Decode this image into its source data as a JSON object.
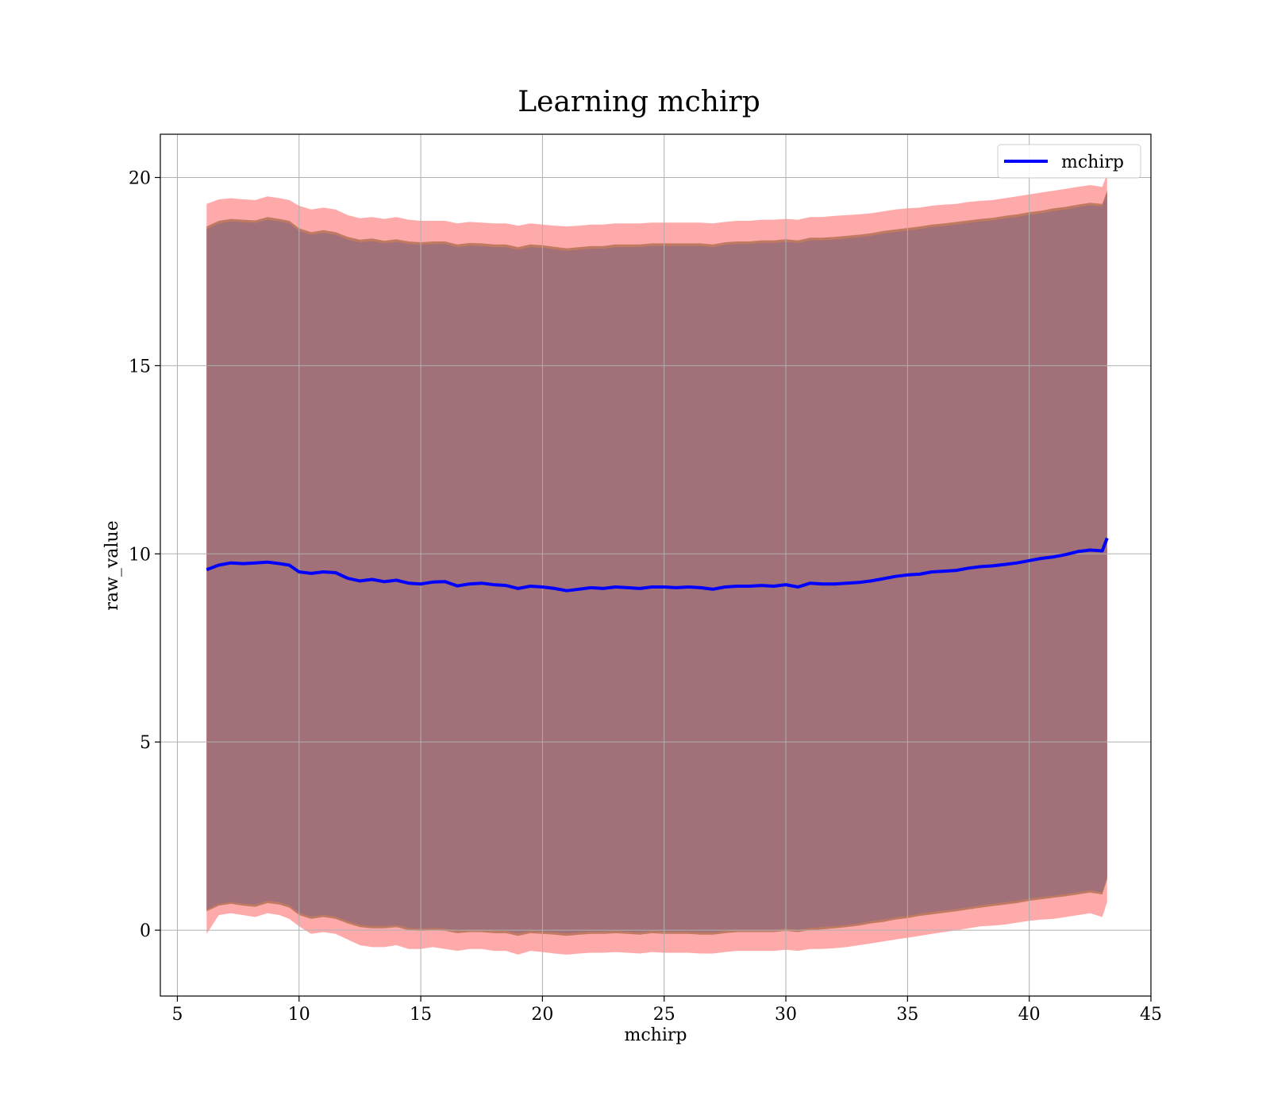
{
  "chart_data": {
    "type": "line",
    "title": "Learning mchirp",
    "xlabel": "mchirp",
    "ylabel": "raw_value",
    "xlim": [
      4.3,
      45
    ],
    "ylim": [
      -1.75,
      21.15
    ],
    "xticks": [
      5,
      10,
      15,
      20,
      25,
      30,
      35,
      40,
      45
    ],
    "yticks": [
      0,
      5,
      10,
      15,
      20
    ],
    "xtick_labels": [
      "5",
      "10",
      "15",
      "20",
      "25",
      "30",
      "35",
      "40",
      "45"
    ],
    "ytick_labels": [
      "0",
      "5",
      "10",
      "15",
      "20"
    ],
    "grid": true,
    "legend": {
      "position": "top-right",
      "entries": [
        {
          "label": "mchirp",
          "color": "#0000ff"
        }
      ]
    },
    "x": [
      6.2,
      6.7,
      7.2,
      7.7,
      8.2,
      8.7,
      9.2,
      9.6,
      10.0,
      10.5,
      11.0,
      11.5,
      12.0,
      12.5,
      13.0,
      13.5,
      14.0,
      14.5,
      15.0,
      15.5,
      16.0,
      16.5,
      17.0,
      17.5,
      18.0,
      18.5,
      19.0,
      19.5,
      20.0,
      20.5,
      21.0,
      21.5,
      22.0,
      22.5,
      23.0,
      23.5,
      24.0,
      24.5,
      25.0,
      25.5,
      26.0,
      26.5,
      27.0,
      27.5,
      28.0,
      28.5,
      29.0,
      29.5,
      30.0,
      30.5,
      31.0,
      31.5,
      32.0,
      32.5,
      33.0,
      33.5,
      34.0,
      34.5,
      35.0,
      35.5,
      36.0,
      36.5,
      37.0,
      37.5,
      38.0,
      38.5,
      39.0,
      39.5,
      40.0,
      40.5,
      41.0,
      41.5,
      42.0,
      42.5,
      43.0,
      43.2
    ],
    "series": [
      {
        "name": "mchirp",
        "color": "#0000ff",
        "values": [
          9.58,
          9.7,
          9.76,
          9.74,
          9.76,
          9.78,
          9.74,
          9.7,
          9.52,
          9.48,
          9.52,
          9.5,
          9.35,
          9.28,
          9.32,
          9.26,
          9.3,
          9.22,
          9.2,
          9.25,
          9.26,
          9.15,
          9.2,
          9.22,
          9.18,
          9.16,
          9.08,
          9.14,
          9.12,
          9.08,
          9.02,
          9.06,
          9.1,
          9.08,
          9.12,
          9.1,
          9.08,
          9.12,
          9.12,
          9.1,
          9.12,
          9.1,
          9.06,
          9.12,
          9.14,
          9.14,
          9.16,
          9.14,
          9.18,
          9.12,
          9.22,
          9.2,
          9.2,
          9.22,
          9.24,
          9.28,
          9.34,
          9.4,
          9.44,
          9.46,
          9.52,
          9.54,
          9.56,
          9.62,
          9.66,
          9.68,
          9.72,
          9.76,
          9.82,
          9.88,
          9.92,
          9.98,
          10.06,
          10.1,
          10.08,
          10.42
        ]
      }
    ],
    "bands": [
      {
        "name": "outer-band",
        "fill_color": "#ffaaaa",
        "lower": [
          -0.1,
          0.4,
          0.45,
          0.4,
          0.35,
          0.45,
          0.4,
          0.3,
          0.1,
          -0.1,
          -0.05,
          -0.1,
          -0.25,
          -0.4,
          -0.45,
          -0.45,
          -0.4,
          -0.5,
          -0.5,
          -0.45,
          -0.5,
          -0.55,
          -0.5,
          -0.5,
          -0.55,
          -0.55,
          -0.65,
          -0.55,
          -0.58,
          -0.62,
          -0.65,
          -0.62,
          -0.6,
          -0.6,
          -0.58,
          -0.6,
          -0.62,
          -0.58,
          -0.6,
          -0.6,
          -0.6,
          -0.62,
          -0.62,
          -0.58,
          -0.55,
          -0.55,
          -0.55,
          -0.55,
          -0.52,
          -0.55,
          -0.5,
          -0.5,
          -0.48,
          -0.45,
          -0.4,
          -0.35,
          -0.3,
          -0.25,
          -0.2,
          -0.15,
          -0.1,
          -0.05,
          0.0,
          0.05,
          0.1,
          0.12,
          0.15,
          0.2,
          0.25,
          0.28,
          0.3,
          0.35,
          0.4,
          0.45,
          0.35,
          0.75
        ],
        "upper": [
          19.3,
          19.42,
          19.45,
          19.42,
          19.4,
          19.5,
          19.45,
          19.4,
          19.25,
          19.15,
          19.2,
          19.15,
          19.0,
          18.92,
          18.95,
          18.9,
          18.95,
          18.88,
          18.85,
          18.85,
          18.85,
          18.78,
          18.82,
          18.8,
          18.78,
          18.78,
          18.72,
          18.78,
          18.75,
          18.72,
          18.7,
          18.72,
          18.75,
          18.75,
          18.78,
          18.78,
          18.78,
          18.8,
          18.8,
          18.8,
          18.8,
          18.8,
          18.78,
          18.82,
          18.85,
          18.85,
          18.88,
          18.88,
          18.9,
          18.88,
          18.95,
          18.95,
          18.98,
          19.0,
          19.02,
          19.05,
          19.1,
          19.15,
          19.18,
          19.2,
          19.25,
          19.28,
          19.3,
          19.35,
          19.38,
          19.4,
          19.45,
          19.5,
          19.55,
          19.6,
          19.65,
          19.7,
          19.75,
          19.8,
          19.75,
          20.1
        ]
      },
      {
        "name": "middle-band",
        "fill_color": "#c07a62",
        "lower": [
          0.5,
          0.65,
          0.7,
          0.65,
          0.62,
          0.72,
          0.68,
          0.6,
          0.4,
          0.3,
          0.35,
          0.3,
          0.18,
          0.08,
          0.05,
          0.05,
          0.08,
          0.0,
          -0.02,
          0.0,
          -0.02,
          -0.08,
          -0.05,
          -0.05,
          -0.08,
          -0.08,
          -0.15,
          -0.08,
          -0.1,
          -0.12,
          -0.15,
          -0.12,
          -0.1,
          -0.1,
          -0.08,
          -0.1,
          -0.12,
          -0.08,
          -0.1,
          -0.1,
          -0.1,
          -0.12,
          -0.12,
          -0.08,
          -0.05,
          -0.05,
          -0.05,
          -0.05,
          -0.02,
          -0.05,
          0.0,
          0.02,
          0.05,
          0.08,
          0.12,
          0.18,
          0.22,
          0.28,
          0.32,
          0.38,
          0.42,
          0.46,
          0.5,
          0.55,
          0.6,
          0.64,
          0.68,
          0.72,
          0.78,
          0.82,
          0.86,
          0.9,
          0.95,
          1.0,
          0.95,
          1.35
        ],
        "upper": [
          18.7,
          18.85,
          18.9,
          18.88,
          18.86,
          18.95,
          18.9,
          18.85,
          18.65,
          18.55,
          18.6,
          18.55,
          18.42,
          18.35,
          18.38,
          18.32,
          18.36,
          18.3,
          18.28,
          18.3,
          18.3,
          18.22,
          18.26,
          18.25,
          18.22,
          18.22,
          18.15,
          18.22,
          18.2,
          18.16,
          18.12,
          18.15,
          18.18,
          18.18,
          18.22,
          18.22,
          18.22,
          18.25,
          18.25,
          18.25,
          18.25,
          18.25,
          18.22,
          18.28,
          18.3,
          18.3,
          18.33,
          18.33,
          18.36,
          18.33,
          18.4,
          18.4,
          18.42,
          18.45,
          18.48,
          18.52,
          18.58,
          18.62,
          18.66,
          18.7,
          18.75,
          18.78,
          18.82,
          18.86,
          18.9,
          18.93,
          18.98,
          19.02,
          19.08,
          19.12,
          19.18,
          19.22,
          19.28,
          19.33,
          19.3,
          19.65
        ]
      },
      {
        "name": "inner-band",
        "fill_color": "#a17078",
        "lower": [
          0.55,
          0.7,
          0.75,
          0.7,
          0.68,
          0.78,
          0.74,
          0.66,
          0.46,
          0.36,
          0.41,
          0.36,
          0.24,
          0.14,
          0.11,
          0.11,
          0.14,
          0.06,
          0.04,
          0.06,
          0.04,
          -0.02,
          0.01,
          0.01,
          -0.02,
          -0.02,
          -0.09,
          -0.02,
          -0.04,
          -0.06,
          -0.09,
          -0.06,
          -0.04,
          -0.04,
          -0.02,
          -0.04,
          -0.06,
          -0.02,
          -0.04,
          -0.04,
          -0.04,
          -0.06,
          -0.06,
          -0.02,
          0.01,
          0.01,
          0.01,
          0.01,
          0.04,
          0.01,
          0.06,
          0.08,
          0.11,
          0.14,
          0.18,
          0.24,
          0.28,
          0.34,
          0.38,
          0.44,
          0.48,
          0.52,
          0.56,
          0.61,
          0.66,
          0.7,
          0.74,
          0.78,
          0.84,
          0.88,
          0.92,
          0.96,
          1.01,
          1.06,
          1.01,
          1.42
        ],
        "upper": [
          18.62,
          18.78,
          18.83,
          18.81,
          18.79,
          18.88,
          18.83,
          18.78,
          18.58,
          18.48,
          18.53,
          18.48,
          18.35,
          18.28,
          18.31,
          18.25,
          18.29,
          18.23,
          18.21,
          18.23,
          18.23,
          18.15,
          18.19,
          18.18,
          18.15,
          18.15,
          18.08,
          18.15,
          18.13,
          18.09,
          18.05,
          18.08,
          18.11,
          18.11,
          18.15,
          18.15,
          18.15,
          18.18,
          18.18,
          18.18,
          18.18,
          18.18,
          18.15,
          18.21,
          18.23,
          18.23,
          18.26,
          18.26,
          18.29,
          18.26,
          18.33,
          18.33,
          18.35,
          18.38,
          18.41,
          18.45,
          18.51,
          18.55,
          18.59,
          18.63,
          18.68,
          18.71,
          18.75,
          18.79,
          18.83,
          18.86,
          18.91,
          18.95,
          19.01,
          19.05,
          19.11,
          19.15,
          19.21,
          19.26,
          19.23,
          19.58
        ]
      }
    ]
  }
}
